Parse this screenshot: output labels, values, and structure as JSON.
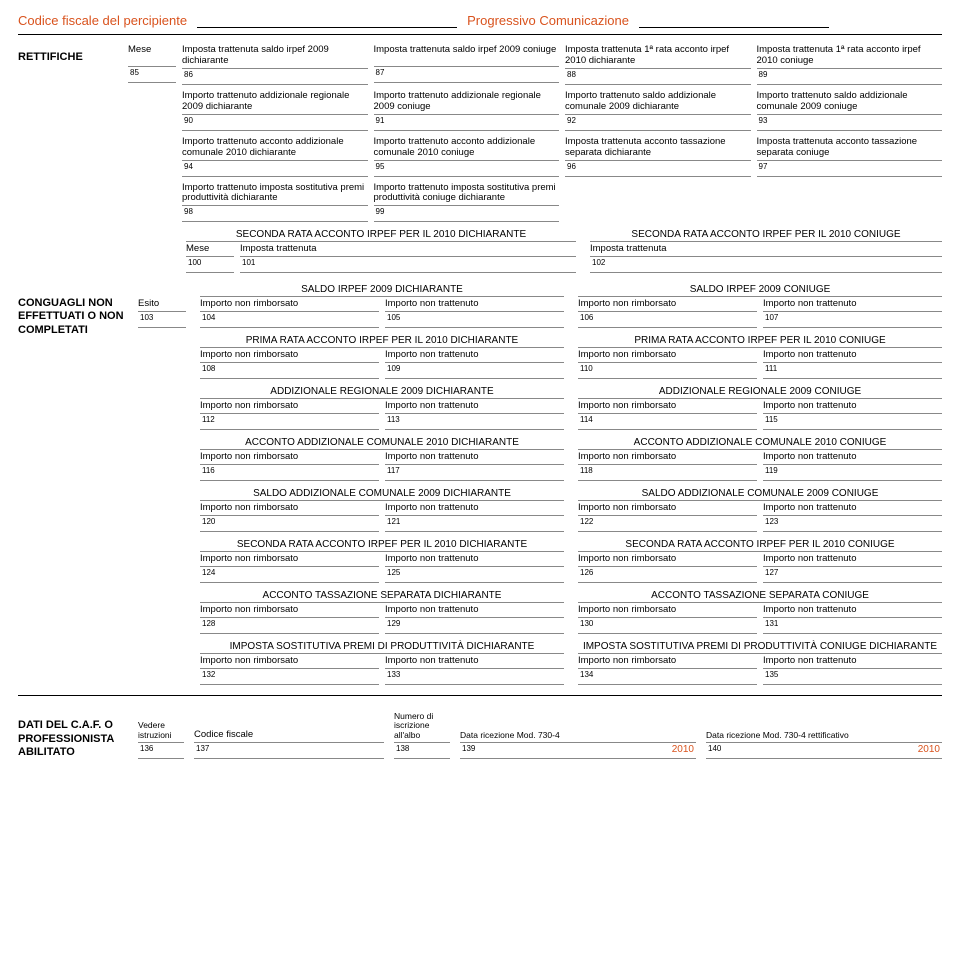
{
  "header": {
    "codice_label": "Codice fiscale del percipiente",
    "progressivo_label": "Progressivo Comunicazione"
  },
  "rettifiche": {
    "title": "RETTIFICHE",
    "mese_label": "Mese",
    "rows": [
      {
        "n": "85",
        "label": "Mese"
      },
      {
        "n": "86",
        "label": "Imposta trattenuta saldo irpef 2009 dichiarante"
      },
      {
        "n": "87",
        "label": "Imposta trattenuta saldo irpef 2009 coniuge"
      },
      {
        "n": "88",
        "label": "Imposta trattenuta 1ª rata acconto irpef 2010 dichiarante"
      },
      {
        "n": "89",
        "label": "Imposta trattenuta 1ª rata acconto irpef 2010 coniuge"
      }
    ],
    "row2": [
      {
        "n": "90",
        "label": "Importo trattenuto addizionale regionale 2009 dichiarante"
      },
      {
        "n": "91",
        "label": "Importo trattenuto addizionale regionale 2009 coniuge"
      },
      {
        "n": "92",
        "label": "Importo trattenuto saldo addizionale comunale 2009 dichiarante"
      },
      {
        "n": "93",
        "label": "Importo trattenuto saldo addizionale comunale 2009 coniuge"
      }
    ],
    "row3": [
      {
        "n": "94",
        "label": "Importo trattenuto acconto addizionale comunale 2010 dichiarante"
      },
      {
        "n": "95",
        "label": "Importo trattenuto acconto addizionale comunale 2010 coniuge"
      },
      {
        "n": "96",
        "label": "Imposta trattenuta acconto tassazione separata dichiarante"
      },
      {
        "n": "97",
        "label": "Imposta trattenuta acconto tassazione separata coniuge"
      }
    ],
    "row4": [
      {
        "n": "98",
        "label": "Importo trattenuto imposta sostitutiva premi produttività dichiarante"
      },
      {
        "n": "99",
        "label": "Importo trattenuto imposta sostitutiva premi produttività coniuge dichiarante"
      }
    ],
    "seconda_rata": {
      "left_header": "SECONDA RATA ACCONTO IRPEF PER IL 2010 DICHIARANTE",
      "right_header": "SECONDA RATA ACCONTO IRPEF PER IL 2010 CONIUGE",
      "mese": "Mese",
      "imposta": "Imposta trattenuta",
      "n100": "100",
      "n101": "101",
      "n102": "102"
    }
  },
  "conguagli": {
    "title": "CONGUAGLI NON EFFETTUATI O NON COMPLETATI",
    "esito_label": "Esito",
    "esito_n": "103",
    "col_labels": {
      "rimb": "Importo non rimborsato",
      "tratt": "Importo non trattenuto"
    },
    "groups": [
      {
        "l": "SALDO IRPEF 2009 DICHIARANTE",
        "r": "SALDO IRPEF 2009 CONIUGE",
        "a": "104",
        "b": "105",
        "c": "106",
        "d": "107"
      },
      {
        "l": "PRIMA RATA ACCONTO IRPEF PER IL 2010 DICHIARANTE",
        "r": "PRIMA RATA ACCONTO IRPEF PER IL 2010 CONIUGE",
        "a": "108",
        "b": "109",
        "c": "110",
        "d": "111"
      },
      {
        "l": "ADDIZIONALE REGIONALE 2009 DICHIARANTE",
        "r": "ADDIZIONALE REGIONALE 2009 CONIUGE",
        "a": "112",
        "b": "113",
        "c": "114",
        "d": "115"
      },
      {
        "l": "ACCONTO ADDIZIONALE COMUNALE 2010 DICHIARANTE",
        "r": "ACCONTO ADDIZIONALE COMUNALE 2010 CONIUGE",
        "a": "116",
        "b": "117",
        "c": "118",
        "d": "119"
      },
      {
        "l": "SALDO ADDIZIONALE COMUNALE 2009 DICHIARANTE",
        "r": "SALDO ADDIZIONALE COMUNALE 2009 CONIUGE",
        "a": "120",
        "b": "121",
        "c": "122",
        "d": "123"
      },
      {
        "l": "SECONDA RATA ACCONTO IRPEF PER IL 2010 DICHIARANTE",
        "r": "SECONDA RATA ACCONTO IRPEF PER IL 2010 CONIUGE",
        "a": "124",
        "b": "125",
        "c": "126",
        "d": "127"
      },
      {
        "l": "ACCONTO TASSAZIONE SEPARATA DICHIARANTE",
        "r": "ACCONTO TASSAZIONE SEPARATA CONIUGE",
        "a": "128",
        "b": "129",
        "c": "130",
        "d": "131"
      },
      {
        "l": "IMPOSTA SOSTITUTIVA PREMI DI PRODUTTIVITÀ DICHIARANTE",
        "r": "IMPOSTA SOSTITUTIVA PREMI DI PRODUTTIVITÀ CONIUGE DICHIARANTE",
        "a": "132",
        "b": "133",
        "c": "134",
        "d": "135"
      }
    ]
  },
  "footer": {
    "title": "DATI DEL C.A.F. O PROFESSIONISTA ABILITATO",
    "vedere": "Vedere istruzioni",
    "codice": "Codice fiscale",
    "numero": "Numero di iscrizione all'albo",
    "data_ric": "Data ricezione Mod. 730-4",
    "data_ric2": "Data ricezione Mod. 730-4 rettificativo",
    "n136": "136",
    "n137": "137",
    "n138": "138",
    "n139": "139",
    "n140": "140",
    "year": "2010"
  }
}
